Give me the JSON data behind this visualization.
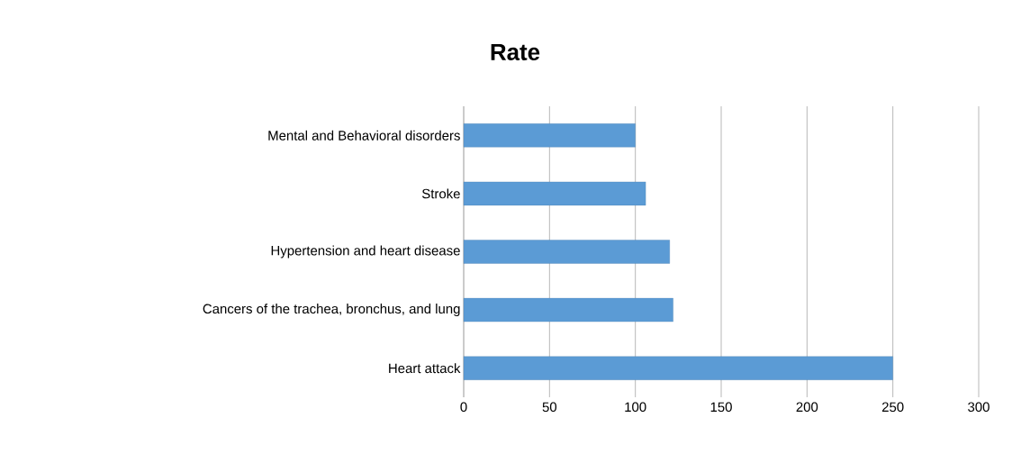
{
  "chart_data": {
    "type": "bar",
    "orientation": "horizontal",
    "title": "Rate",
    "categories": [
      "Mental and Behavioral disorders",
      "Stroke",
      "Hypertension and heart disease",
      "Cancers of the trachea, bronchus, and lung",
      "Heart attack"
    ],
    "values": [
      100,
      106,
      120,
      122,
      250
    ],
    "color": "#5b9bd5",
    "xlim": [
      0,
      300
    ],
    "xticks": [
      0,
      50,
      100,
      150,
      200,
      250,
      300
    ],
    "grid": "x"
  }
}
